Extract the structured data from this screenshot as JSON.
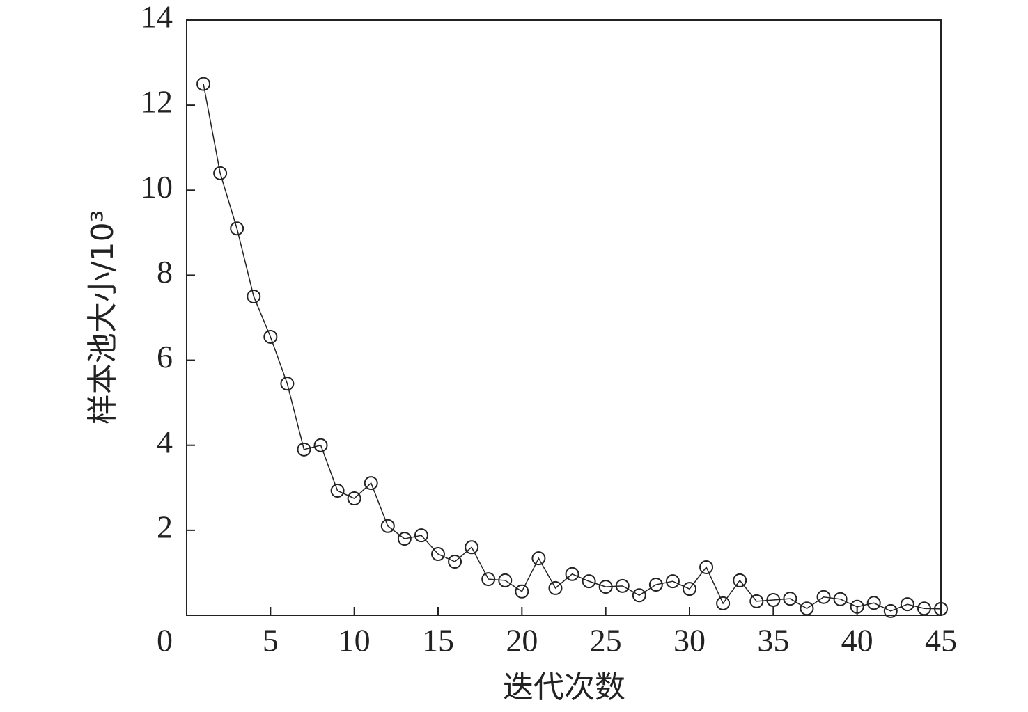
{
  "chart_data": {
    "type": "line",
    "xlabel": "迭代次数",
    "ylabel": "样本池大小/10³",
    "x": [
      1,
      2,
      3,
      4,
      5,
      6,
      7,
      8,
      9,
      10,
      11,
      12,
      13,
      14,
      15,
      16,
      17,
      18,
      19,
      20,
      21,
      22,
      23,
      24,
      25,
      26,
      27,
      28,
      29,
      30,
      31,
      32,
      33,
      34,
      35,
      36,
      37,
      38,
      39,
      40,
      41,
      42,
      43,
      44,
      45
    ],
    "values": [
      12.5,
      10.4,
      9.1,
      7.5,
      6.55,
      5.45,
      3.9,
      4.0,
      2.93,
      2.75,
      3.11,
      2.1,
      1.8,
      1.88,
      1.44,
      1.26,
      1.6,
      0.85,
      0.82,
      0.56,
      1.34,
      0.64,
      0.97,
      0.8,
      0.67,
      0.69,
      0.47,
      0.72,
      0.8,
      0.62,
      1.13,
      0.28,
      0.82,
      0.33,
      0.36,
      0.39,
      0.16,
      0.43,
      0.38,
      0.2,
      0.29,
      0.1,
      0.26,
      0.16,
      0.15
    ],
    "color": "#222222",
    "marker": "open-circle",
    "xlim": [
      0,
      45
    ],
    "xticks": [
      0,
      5,
      10,
      15,
      20,
      25,
      30,
      35,
      40,
      45
    ],
    "ylim": [
      0,
      14
    ],
    "yticks": [
      2,
      4,
      6,
      8,
      10,
      12,
      14
    ],
    "grid": false
  }
}
